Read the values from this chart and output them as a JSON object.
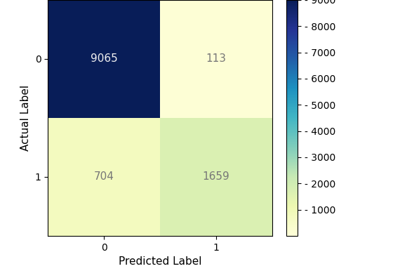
{
  "matrix": [
    [
      9065,
      113
    ],
    [
      704,
      1659
    ]
  ],
  "x_labels": [
    "0",
    "1"
  ],
  "y_labels": [
    "0",
    "1"
  ],
  "xlabel": "Predicted Label",
  "ylabel": "Actual Label",
  "colormap": "YlGnBu",
  "vmin": 0,
  "vmax": 9000,
  "colorbar_ticks": [
    1000,
    2000,
    3000,
    4000,
    5000,
    6000,
    7000,
    8000,
    9000
  ],
  "text_color_threshold": 4500,
  "text_light": "#f0f0f0",
  "text_dark": "#777777",
  "figsize": [
    5.7,
    3.86
  ],
  "dpi": 100
}
